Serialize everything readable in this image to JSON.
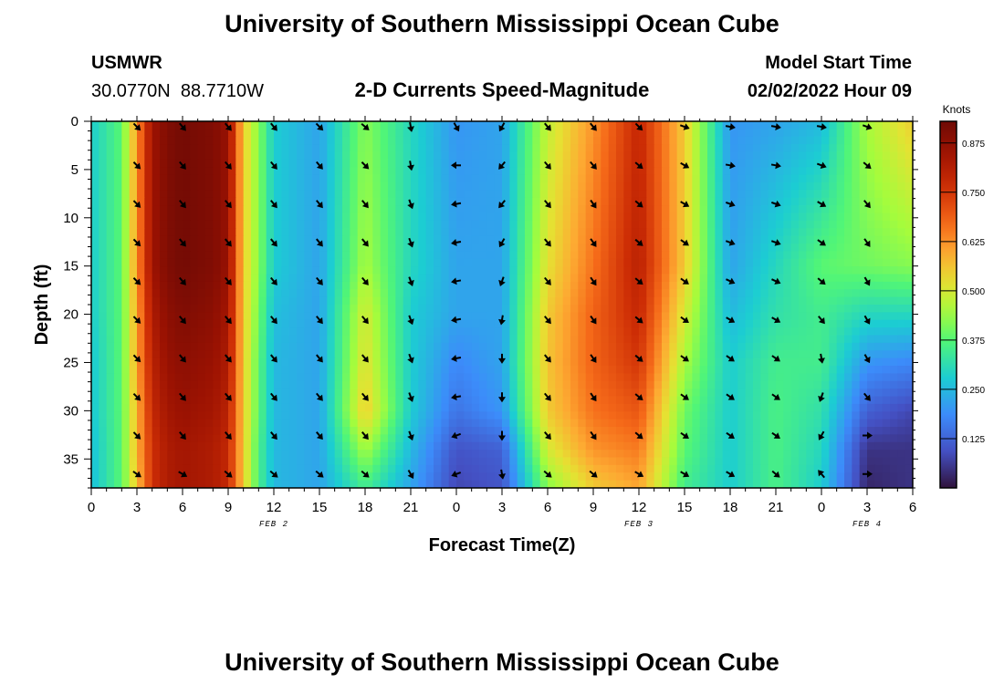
{
  "chart_data": {
    "type": "heatmap",
    "title": "University of Southern Mississippi Ocean Cube",
    "subtitle": "2-D Currents Speed-Magnitude",
    "station": "USMWR",
    "coords": "30.0770N  88.7710W",
    "model_start_label": "Model Start Time",
    "model_start_value": "02/02/2022 Hour 09",
    "xlabel": "Forecast Time(Z)",
    "ylabel": "Depth (ft)",
    "colorbar_label": "Knots",
    "colorbar_ticks": [
      "0.125",
      "0.250",
      "0.375",
      "0.500",
      "0.625",
      "0.750",
      "0.875"
    ],
    "colorbar_range": [
      0,
      0.93
    ],
    "x_hours": [
      0,
      3,
      6,
      9,
      12,
      15,
      18,
      21,
      24,
      27,
      30,
      33,
      36,
      39,
      42,
      45,
      48,
      51,
      54
    ],
    "x_tick_labels": [
      "0",
      "3",
      "6",
      "9",
      "12",
      "15",
      "18",
      "21",
      "0",
      "3",
      "6",
      "9",
      "12",
      "15",
      "18",
      "21",
      "0",
      "3",
      "6"
    ],
    "xlim_hours": [
      0,
      54
    ],
    "date_labels": [
      {
        "text": "FEB 2",
        "hour": 12
      },
      {
        "text": "FEB 3",
        "hour": 36
      },
      {
        "text": "FEB 4",
        "hour": 51
      }
    ],
    "y_ticks": [
      "0",
      "5",
      "10",
      "15",
      "20",
      "25",
      "30",
      "35"
    ],
    "ylim_ft": [
      0,
      38
    ],
    "grid_hours": [
      0,
      2,
      3,
      4,
      5,
      6,
      8,
      9,
      10,
      11,
      12,
      15,
      18,
      21,
      24,
      27,
      30,
      33,
      36,
      39,
      42,
      45,
      48,
      51,
      54
    ],
    "grid_depths": [
      0,
      15,
      20,
      25,
      30,
      34,
      38
    ],
    "speed_knots": [
      [
        0.28,
        0.38,
        0.62,
        0.85,
        0.9,
        0.92,
        0.9,
        0.86,
        0.55,
        0.42,
        0.28,
        0.22,
        0.42,
        0.3,
        0.2,
        0.22,
        0.48,
        0.62,
        0.78,
        0.55,
        0.2,
        0.22,
        0.25,
        0.45,
        0.55
      ],
      [
        0.28,
        0.38,
        0.62,
        0.85,
        0.9,
        0.92,
        0.9,
        0.86,
        0.55,
        0.42,
        0.28,
        0.22,
        0.45,
        0.3,
        0.22,
        0.22,
        0.52,
        0.66,
        0.8,
        0.55,
        0.22,
        0.3,
        0.38,
        0.4,
        0.42
      ],
      [
        0.28,
        0.38,
        0.6,
        0.82,
        0.88,
        0.9,
        0.88,
        0.84,
        0.55,
        0.4,
        0.26,
        0.22,
        0.5,
        0.28,
        0.22,
        0.22,
        0.55,
        0.68,
        0.78,
        0.5,
        0.25,
        0.32,
        0.35,
        0.3,
        0.3
      ],
      [
        0.27,
        0.38,
        0.6,
        0.8,
        0.86,
        0.88,
        0.86,
        0.82,
        0.55,
        0.38,
        0.25,
        0.22,
        0.52,
        0.28,
        0.18,
        0.22,
        0.56,
        0.68,
        0.75,
        0.45,
        0.28,
        0.35,
        0.35,
        0.2,
        0.18
      ],
      [
        0.27,
        0.38,
        0.58,
        0.78,
        0.84,
        0.86,
        0.84,
        0.8,
        0.55,
        0.38,
        0.25,
        0.22,
        0.55,
        0.28,
        0.15,
        0.2,
        0.55,
        0.66,
        0.7,
        0.4,
        0.28,
        0.36,
        0.32,
        0.12,
        0.08
      ],
      [
        0.26,
        0.38,
        0.58,
        0.76,
        0.82,
        0.84,
        0.82,
        0.78,
        0.55,
        0.36,
        0.25,
        0.22,
        0.45,
        0.25,
        0.1,
        0.12,
        0.5,
        0.62,
        0.65,
        0.38,
        0.28,
        0.36,
        0.3,
        0.05,
        0.05
      ],
      [
        0.26,
        0.38,
        0.56,
        0.76,
        0.82,
        0.84,
        0.82,
        0.78,
        0.55,
        0.36,
        0.25,
        0.22,
        0.35,
        0.22,
        0.08,
        0.1,
        0.42,
        0.55,
        0.6,
        0.35,
        0.28,
        0.36,
        0.28,
        0.03,
        0.05
      ]
    ],
    "arrow_hours": [
      3,
      6,
      9,
      12,
      15,
      18,
      21,
      24,
      27,
      30,
      33,
      36,
      39,
      42,
      45,
      48,
      51
    ],
    "arrow_depths": [
      0,
      4,
      8,
      12,
      16,
      20,
      24,
      28,
      32,
      36
    ],
    "arrow_dir_deg": [
      [
        135,
        140,
        140,
        140,
        135,
        130,
        170,
        150,
        210,
        140,
        140,
        135,
        110,
        100,
        100,
        100,
        110
      ],
      [
        135,
        140,
        140,
        140,
        140,
        135,
        170,
        270,
        220,
        140,
        140,
        130,
        120,
        100,
        100,
        110,
        130
      ],
      [
        135,
        140,
        140,
        140,
        140,
        140,
        160,
        260,
        220,
        140,
        145,
        130,
        120,
        110,
        110,
        120,
        140
      ],
      [
        135,
        140,
        140,
        140,
        140,
        140,
        160,
        260,
        210,
        140,
        145,
        130,
        125,
        110,
        110,
        125,
        145
      ],
      [
        135,
        140,
        140,
        140,
        140,
        140,
        160,
        260,
        200,
        140,
        145,
        130,
        125,
        115,
        115,
        130,
        150
      ],
      [
        135,
        140,
        140,
        140,
        140,
        140,
        160,
        260,
        190,
        140,
        145,
        130,
        125,
        120,
        120,
        140,
        150
      ],
      [
        135,
        140,
        140,
        140,
        140,
        140,
        160,
        260,
        180,
        140,
        145,
        130,
        125,
        125,
        125,
        170,
        150
      ],
      [
        135,
        140,
        140,
        140,
        140,
        140,
        160,
        260,
        180,
        140,
        145,
        130,
        125,
        125,
        125,
        200,
        140
      ],
      [
        135,
        140,
        140,
        140,
        140,
        140,
        160,
        250,
        180,
        140,
        145,
        130,
        125,
        125,
        125,
        210,
        90
      ],
      [
        125,
        120,
        130,
        130,
        130,
        130,
        150,
        250,
        170,
        130,
        130,
        120,
        120,
        120,
        130,
        320,
        90
      ]
    ],
    "footer_title": "University of Southern Mississippi Ocean Cube"
  }
}
